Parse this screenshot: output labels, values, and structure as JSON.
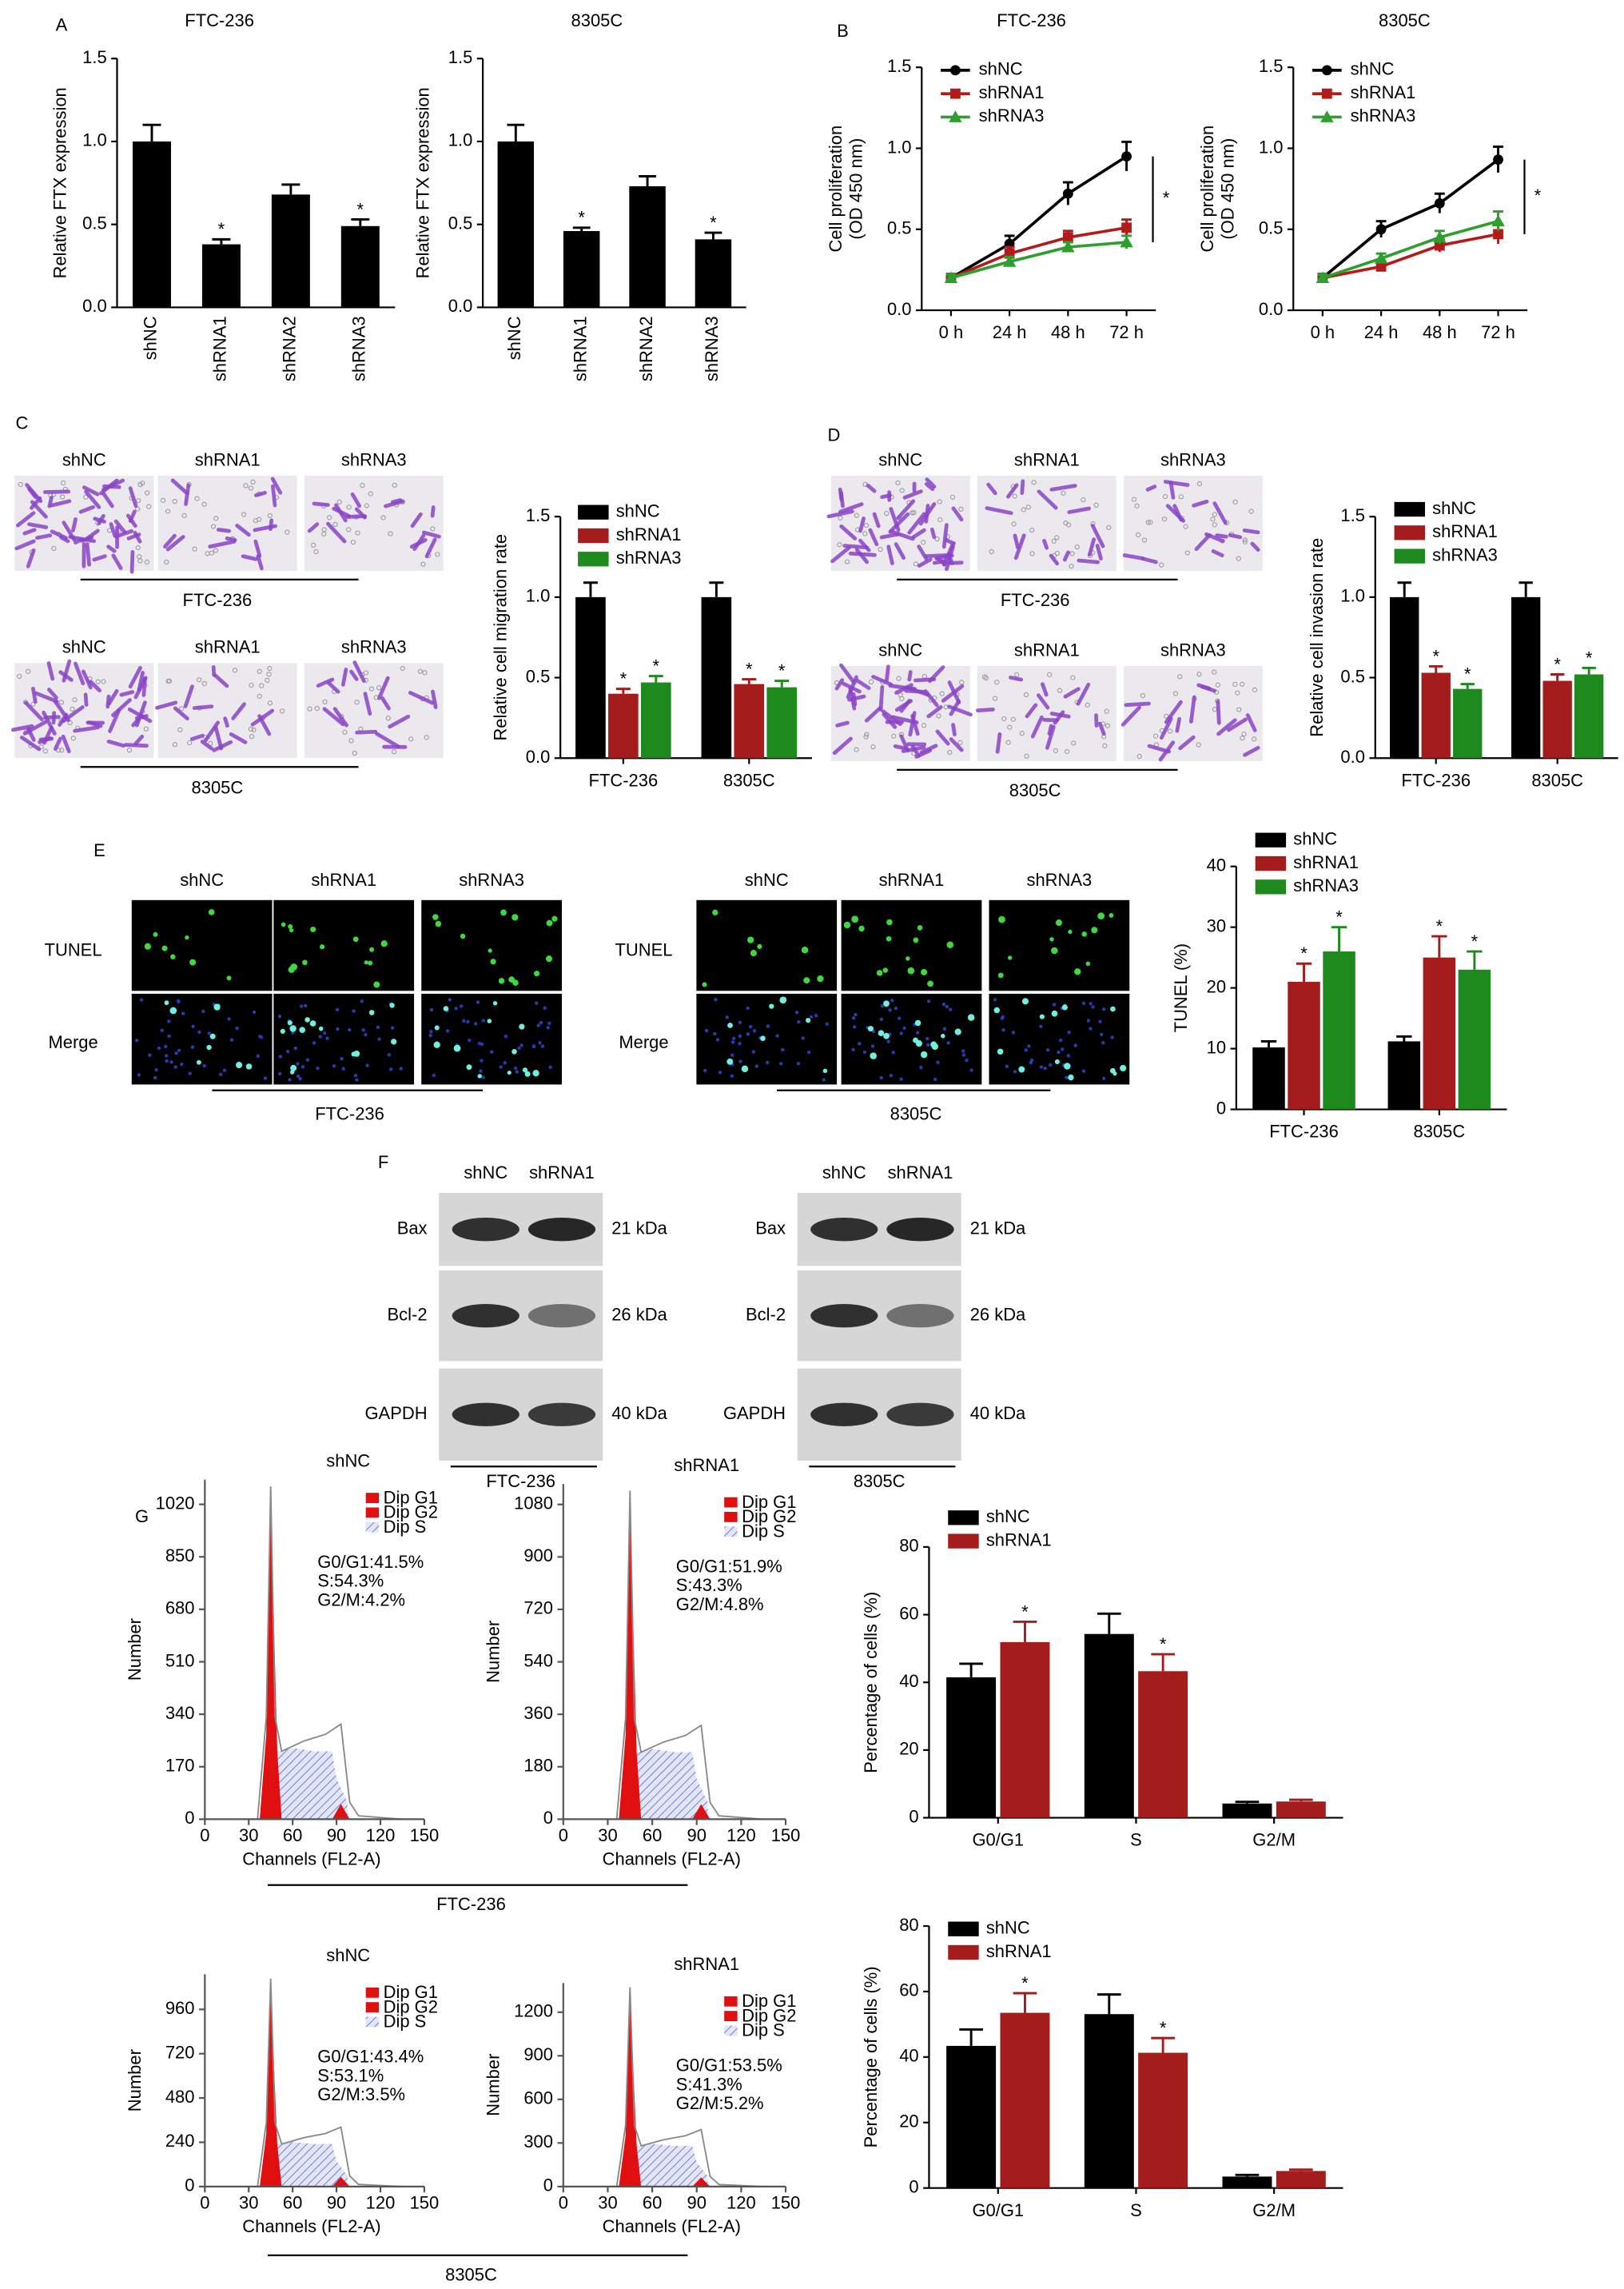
{
  "panel_letters": [
    "A",
    "B",
    "C",
    "D",
    "E",
    "F",
    "G"
  ],
  "chart_data": [
    {
      "type": "bar",
      "title": "FTC-236",
      "ylabel": "Relative FTX expression",
      "categories": [
        "shNC",
        "shRNA1",
        "shRNA2",
        "shRNA3"
      ],
      "values": [
        1.0,
        0.38,
        0.68,
        0.49
      ],
      "errors": [
        0.1,
        0.03,
        0.06,
        0.04
      ],
      "significance": [
        null,
        "*",
        null,
        "*"
      ],
      "color": "#000000",
      "ylim": [
        0,
        1.5
      ],
      "yticks": [
        {
          "value": 0,
          "label": "0.0"
        },
        0.5,
        {
          "value": 1,
          "label": "1.0"
        },
        1.5
      ]
    },
    {
      "type": "bar",
      "title": "8305C",
      "ylabel": "Relative FTX expression",
      "categories": [
        "shNC",
        "shRNA1",
        "shRNA2",
        "shRNA3"
      ],
      "values": [
        1.0,
        0.46,
        0.73,
        0.41
      ],
      "errors": [
        0.1,
        0.02,
        0.06,
        0.04
      ],
      "significance": [
        null,
        "*",
        null,
        "*"
      ],
      "color": "#000000",
      "ylim": [
        0,
        1.5
      ],
      "yticks": [
        {
          "value": 0,
          "label": "0.0"
        },
        0.5,
        {
          "value": 1,
          "label": "1.0"
        },
        1.5
      ]
    },
    {
      "type": "line",
      "title": "FTC-236",
      "ylabel": [
        "Cell proliferation",
        "(OD 450 nm)"
      ],
      "categories": [
        "0 h",
        "24 h",
        "48 h",
        "72 h"
      ],
      "series": [
        {
          "name": "shNC",
          "color": "#000000",
          "marker": "circle",
          "values": [
            0.2,
            0.41,
            0.72,
            0.95
          ],
          "errors": [
            0.02,
            0.05,
            0.07,
            0.09
          ]
        },
        {
          "name": "shRNA1",
          "color": "#b31b1b",
          "marker": "square",
          "values": [
            0.2,
            0.35,
            0.45,
            0.51
          ],
          "errors": [
            0.02,
            0.04,
            0.04,
            0.05
          ]
        },
        {
          "name": "shRNA3",
          "color": "#2e9e2e",
          "marker": "triangle",
          "values": [
            0.2,
            0.3,
            0.39,
            0.42
          ],
          "errors": [
            0.02,
            0.03,
            0.03,
            0.04
          ]
        }
      ],
      "significance": "*",
      "ylim": [
        0,
        1.5
      ],
      "yticks": [
        {
          "value": 0,
          "label": "0.0"
        },
        0.5,
        {
          "value": 1,
          "label": "1.0"
        },
        1.5
      ]
    },
    {
      "type": "line",
      "title": "8305C",
      "ylabel": [
        "Cell proliferation",
        "(OD 450 nm)"
      ],
      "categories": [
        "0 h",
        "24 h",
        "48 h",
        "72 h"
      ],
      "series": [
        {
          "name": "shNC",
          "color": "#000000",
          "marker": "circle",
          "values": [
            0.2,
            0.5,
            0.66,
            0.93
          ],
          "errors": [
            0.02,
            0.05,
            0.06,
            0.08
          ]
        },
        {
          "name": "shRNA1",
          "color": "#b31b1b",
          "marker": "square",
          "values": [
            0.2,
            0.27,
            0.4,
            0.47
          ],
          "errors": [
            0.02,
            0.03,
            0.04,
            0.06
          ]
        },
        {
          "name": "shRNA3",
          "color": "#2e9e2e",
          "marker": "triangle",
          "values": [
            0.2,
            0.32,
            0.45,
            0.55
          ],
          "errors": [
            0.02,
            0.03,
            0.04,
            0.06
          ]
        }
      ],
      "significance": "*",
      "ylim": [
        0,
        1.5
      ],
      "yticks": [
        {
          "value": 0,
          "label": "0.0"
        },
        0.5,
        {
          "value": 1,
          "label": "1.0"
        },
        1.5
      ]
    },
    {
      "type": "bar",
      "ylabel": "Relative cell migration rate",
      "categories": [
        "FTC-236",
        "8305C"
      ],
      "series": [
        {
          "name": "shNC",
          "color": "#000000",
          "values": [
            1.0,
            1.0
          ],
          "errors": [
            0.09,
            0.09
          ]
        },
        {
          "name": "shRNA1",
          "color": "#a51c1c",
          "values": [
            0.4,
            0.46
          ],
          "errors": [
            0.03,
            0.03
          ],
          "significance": [
            "*",
            "*"
          ]
        },
        {
          "name": "shRNA3",
          "color": "#1e8a1e",
          "values": [
            0.47,
            0.44
          ],
          "errors": [
            0.04,
            0.04
          ],
          "significance": [
            "*",
            "*"
          ]
        }
      ],
      "ylim": [
        0,
        1.5
      ],
      "yticks": [
        {
          "value": 0,
          "label": "0.0"
        },
        0.5,
        {
          "value": 1,
          "label": "1.0"
        },
        1.5
      ]
    },
    {
      "type": "bar",
      "ylabel": "Relative cell invasion rate",
      "categories": [
        "FTC-236",
        "8305C"
      ],
      "series": [
        {
          "name": "shNC",
          "color": "#000000",
          "values": [
            1.0,
            1.0
          ],
          "errors": [
            0.09,
            0.09
          ]
        },
        {
          "name": "shRNA1",
          "color": "#a51c1c",
          "values": [
            0.53,
            0.48
          ],
          "errors": [
            0.04,
            0.04
          ],
          "significance": [
            "*",
            "*"
          ]
        },
        {
          "name": "shRNA3",
          "color": "#1e8a1e",
          "values": [
            0.43,
            0.52
          ],
          "errors": [
            0.03,
            0.04
          ],
          "significance": [
            "*",
            "*"
          ]
        }
      ],
      "ylim": [
        0,
        1.5
      ],
      "yticks": [
        {
          "value": 0,
          "label": "0.0"
        },
        0.5,
        {
          "value": 1,
          "label": "1.0"
        },
        1.5
      ]
    },
    {
      "type": "bar",
      "ylabel": "TUNEL (%)",
      "categories": [
        "FTC-236",
        "8305C"
      ],
      "series": [
        {
          "name": "shNC",
          "color": "#000000",
          "values": [
            10.2,
            11.2
          ],
          "errors": [
            1,
            0.8
          ]
        },
        {
          "name": "shRNA1",
          "color": "#a51c1c",
          "values": [
            21,
            25
          ],
          "errors": [
            3,
            3.5
          ],
          "significance": [
            "*",
            "*"
          ]
        },
        {
          "name": "shRNA3",
          "color": "#1e8a1e",
          "values": [
            26,
            23
          ],
          "errors": [
            4,
            3
          ],
          "significance": [
            "*",
            "*"
          ]
        }
      ],
      "ylim": [
        0,
        40
      ],
      "yticks": [
        0,
        10,
        20,
        30,
        40
      ]
    },
    {
      "type": "bar",
      "ylabel": "Percentage of cells (%)",
      "categories": [
        "G0/G1",
        "S",
        "G2/M"
      ],
      "series": [
        {
          "name": "shNC",
          "color": "#000000",
          "values": [
            41.5,
            54.3,
            4.2
          ],
          "errors": [
            4,
            6,
            0.5
          ]
        },
        {
          "name": "shRNA1",
          "color": "#a51c1c",
          "values": [
            51.9,
            43.3,
            4.8
          ],
          "errors": [
            6,
            5,
            0.5
          ],
          "significance": [
            "*",
            "*",
            null
          ]
        }
      ],
      "ylim": [
        0,
        80
      ],
      "yticks": [
        0,
        20,
        40,
        60,
        80
      ]
    },
    {
      "type": "bar",
      "ylabel": "Percentage of cells (%)",
      "categories": [
        "G0/G1",
        "S",
        "G2/M"
      ],
      "series": [
        {
          "name": "shNC",
          "color": "#000000",
          "values": [
            43.4,
            53.1,
            3.5
          ],
          "errors": [
            5,
            6,
            0.5
          ]
        },
        {
          "name": "shRNA1",
          "color": "#a51c1c",
          "values": [
            53.5,
            41.3,
            5.2
          ],
          "errors": [
            6,
            4.5,
            0.4
          ],
          "significance": [
            "*",
            "*",
            null
          ]
        }
      ],
      "ylim": [
        0,
        80
      ],
      "yticks": [
        0,
        20,
        40,
        60,
        80
      ]
    }
  ],
  "migration": {
    "groups": [
      {
        "columns": [
          "shNC",
          "shRNA1",
          "shRNA3"
        ],
        "caption": "FTC-236"
      },
      {
        "columns": [
          "shNC",
          "shRNA1",
          "shRNA3"
        ],
        "caption": "8305C"
      }
    ]
  },
  "invasion": {
    "groups": [
      {
        "columns": [
          "shNC",
          "shRNA1",
          "shRNA3"
        ],
        "caption": "FTC-236"
      },
      {
        "columns": [
          "shNC",
          "shRNA1",
          "shRNA3"
        ],
        "caption": "8305C"
      }
    ]
  },
  "tunel_images": {
    "groups": [
      {
        "columns": [
          "shNC",
          "shRNA1",
          "shRNA3"
        ],
        "rows": [
          "TUNEL",
          "Merge"
        ],
        "caption": "FTC-236"
      },
      {
        "columns": [
          "shNC",
          "shRNA1",
          "shRNA3"
        ],
        "rows": [
          "TUNEL",
          "Merge"
        ],
        "caption": "8305C"
      }
    ]
  },
  "western_blot": {
    "groups": [
      {
        "columns": [
          "shNC",
          "shRNA1"
        ],
        "rows": [
          {
            "protein": "Bax",
            "size": "21 kDa"
          },
          {
            "protein": "Bcl-2",
            "size": "26 kDa"
          },
          {
            "protein": "GAPDH",
            "size": "40 kDa"
          }
        ],
        "caption": "FTC-236"
      },
      {
        "columns": [
          "shNC",
          "shRNA1"
        ],
        "rows": [
          {
            "protein": "Bax",
            "size": "21 kDa"
          },
          {
            "protein": "Bcl-2",
            "size": "26 kDa"
          },
          {
            "protein": "GAPDH",
            "size": "40 kDa"
          }
        ],
        "caption": "8305C"
      }
    ]
  },
  "flow_cytometry": {
    "captions": [
      "FTC-236",
      "8305C"
    ],
    "plots": [
      {
        "title": "shNC",
        "ylabel": "Number",
        "xlabel": "Channels (FL2-A)",
        "xlim": [
          0,
          150
        ],
        "xticks": [
          0,
          30,
          60,
          90,
          120,
          150
        ],
        "ylim": [
          0,
          1100
        ],
        "yticks": [
          0,
          170,
          340,
          510,
          680,
          850,
          1020
        ],
        "legend": [
          "Dip G1",
          "Dip G2",
          "Dip S"
        ],
        "stats": [
          "G0/G1:41.5%",
          "S:54.3%",
          "G2/M:4.2%"
        ]
      },
      {
        "title": "shRNA1",
        "ylabel": "Number",
        "xlabel": "Channels (FL2-A)",
        "xlim": [
          0,
          150
        ],
        "xticks": [
          0,
          30,
          60,
          90,
          120,
          150
        ],
        "ylim": [
          0,
          1150
        ],
        "yticks": [
          0,
          180,
          360,
          540,
          720,
          900,
          1080
        ],
        "legend": [
          "Dip G1",
          "Dip G2",
          "Dip S"
        ],
        "stats": [
          "G0/G1:51.9%",
          "S:43.3%",
          "G2/M:4.8%"
        ]
      },
      {
        "title": "shNC",
        "ylabel": "Number",
        "xlabel": "Channels (FL2-A)",
        "xlim": [
          0,
          150
        ],
        "xticks": [
          0,
          30,
          60,
          90,
          120,
          150
        ],
        "ylim": [
          0,
          1150
        ],
        "yticks": [
          0,
          240,
          480,
          720,
          960
        ],
        "legend": [
          "Dip G1",
          "Dip G2",
          "Dip S"
        ],
        "stats": [
          "G0/G1:43.4%",
          "S:53.1%",
          "G2/M:3.5%"
        ]
      },
      {
        "title": "shRNA1",
        "ylabel": "Number",
        "xlabel": "Channels (FL2-A)",
        "xlim": [
          0,
          150
        ],
        "xticks": [
          0,
          30,
          60,
          90,
          120,
          150
        ],
        "ylim": [
          0,
          1400
        ],
        "yticks": [
          0,
          300,
          600,
          900,
          1200
        ],
        "legend": [
          "Dip G1",
          "Dip G2",
          "Dip S"
        ],
        "stats": [
          "G0/G1:53.5%",
          "S:41.3%",
          "G2/M:5.2%"
        ]
      }
    ]
  }
}
